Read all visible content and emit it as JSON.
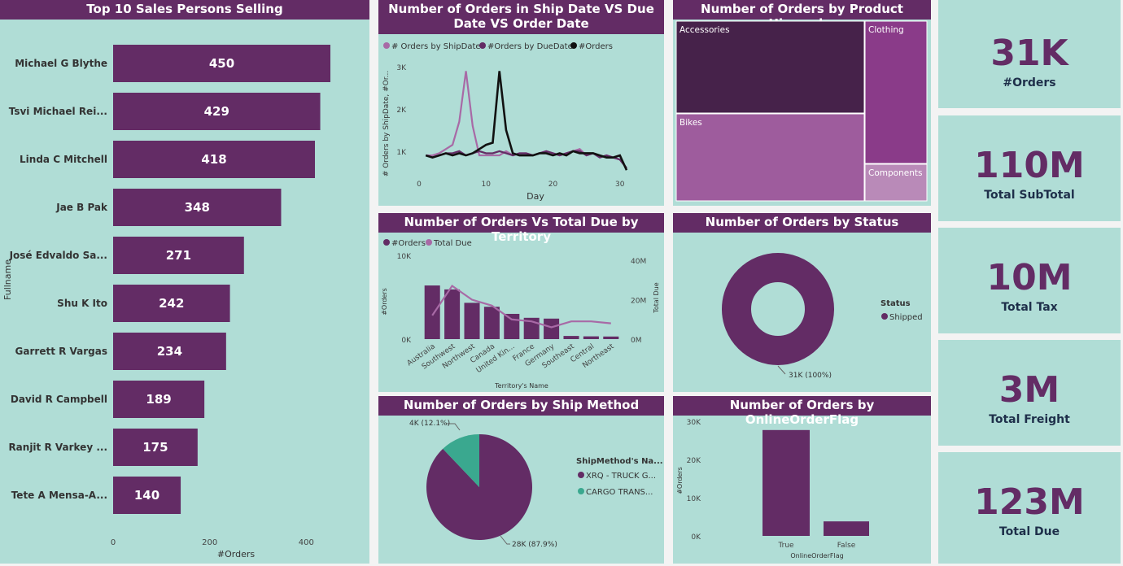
{
  "colors": {
    "accent": "#632c65",
    "light": "#a86aa6",
    "bg": "#b0ddd6",
    "black": "#111111",
    "teal": "#3aa88f"
  },
  "top_sales": {
    "title": "Top 10 Sales Persons Selling",
    "ylabel": "Fullname",
    "xlabel": "#Orders",
    "chart_data": {
      "type": "bar",
      "orientation": "horizontal",
      "categories": [
        "Michael G Blythe",
        "Tsvi Michael Rei...",
        "Linda C Mitchell",
        "Jae B Pak",
        "José Edvaldo Sa...",
        "Shu K Ito",
        "Garrett R Vargas",
        "David R Campbell",
        "Ranjit R Varkey ...",
        "Tete A Mensa-A..."
      ],
      "values": [
        450,
        429,
        418,
        348,
        271,
        242,
        234,
        189,
        175,
        140
      ],
      "xticks": [
        "0",
        "200",
        "400"
      ],
      "xlim": [
        0,
        460
      ]
    }
  },
  "ship_due": {
    "title": "Number of Orders in Ship Date VS Due Date VS Order Date",
    "legend": [
      "# Orders by ShipDate",
      "#Orders by DueDate",
      "#Orders"
    ],
    "ylabel": "# Orders by ShipDate, #Or...",
    "xlabel": "Day",
    "yticks": [
      "1K",
      "2K",
      "3K"
    ],
    "xticks": [
      "0",
      "10",
      "20",
      "30"
    ],
    "chart_data": {
      "type": "line",
      "x": [
        1,
        2,
        3,
        4,
        5,
        6,
        7,
        8,
        9,
        10,
        11,
        12,
        13,
        14,
        15,
        16,
        17,
        18,
        19,
        20,
        21,
        22,
        23,
        24,
        25,
        26,
        27,
        28,
        29,
        30,
        31
      ],
      "series": [
        {
          "name": "# Orders by ShipDate",
          "values": [
            900,
            900,
            950,
            1050,
            1150,
            1700,
            2900,
            1600,
            900,
            900,
            900,
            900,
            1000,
            900,
            950,
            950,
            900,
            950,
            1000,
            950,
            900,
            950,
            1000,
            1050,
            900,
            950,
            850,
            900,
            850,
            800,
            600
          ]
        },
        {
          "name": "#Orders by DueDate",
          "values": [
            900,
            850,
            900,
            950,
            950,
            1000,
            900,
            950,
            1000,
            950,
            950,
            1000,
            950,
            900,
            950,
            950,
            900,
            950,
            1000,
            950,
            900,
            950,
            1000,
            1000,
            900,
            950,
            850,
            900,
            850,
            800,
            600
          ]
        },
        {
          "name": "#Orders",
          "values": [
            900,
            850,
            900,
            950,
            900,
            950,
            900,
            950,
            1050,
            1150,
            1200,
            2900,
            1500,
            950,
            900,
            900,
            900,
            950,
            950,
            900,
            950,
            900,
            1000,
            950,
            950,
            950,
            900,
            850,
            850,
            900,
            550
          ]
        }
      ],
      "ylim": [
        400,
        3100
      ],
      "xlim": [
        0,
        31
      ]
    }
  },
  "product": {
    "title": "Number of Orders by Product Hierarchy",
    "chart_data": {
      "type": "treemap",
      "categories": [
        "Accessories",
        "Bikes",
        "Clothing",
        "Components"
      ]
    }
  },
  "territory": {
    "title": "Number of Orders Vs Total Due by Territory",
    "legend": [
      "#Orders",
      "Total Due"
    ],
    "ylabel": "#Orders",
    "y2label": "Total Due",
    "xlabel": "Territory's Name",
    "yticks": [
      "0K",
      "10K"
    ],
    "y2ticks": [
      "0M",
      "20M",
      "40M"
    ],
    "chart_data": {
      "type": "bar",
      "categories": [
        "Australia",
        "Southwest",
        "Northwest",
        "Canada",
        "United Kin...",
        "France",
        "Germany",
        "Southeast",
        "Central",
        "Northeast"
      ],
      "series": [
        {
          "name": "#Orders",
          "values": [
            6800,
            6300,
            4600,
            4100,
            3200,
            2700,
            2600,
            400,
            350,
            330
          ]
        },
        {
          "name": "Total Due",
          "values": [
            12000,
            27000,
            20000,
            17000,
            10000,
            9000,
            6000,
            9000,
            9000,
            8000
          ]
        }
      ],
      "ylim": [
        0,
        10000
      ],
      "y2lim": [
        0,
        40000
      ]
    }
  },
  "status": {
    "title": "Number of Orders by Status",
    "legend_title": "Status",
    "legend": [
      "Shipped"
    ],
    "label": "31K (100%)",
    "chart_data": {
      "type": "pie",
      "categories": [
        "Shipped"
      ],
      "values": [
        31000
      ]
    }
  },
  "ship_method": {
    "title": "Number of Orders by Ship Method",
    "legend_title": "ShipMethod's Na...",
    "legend": [
      "XRQ - TRUCK G...",
      "CARGO TRANS..."
    ],
    "label_big": "28K (87.9%)",
    "label_small": "4K (12.1%)",
    "chart_data": {
      "type": "pie",
      "categories": [
        "XRQ - TRUCK G...",
        "CARGO TRANS..."
      ],
      "values": [
        87.9,
        12.1
      ]
    }
  },
  "online": {
    "title": "Number of Orders by OnlineOrderFlag",
    "ylabel": "#Orders",
    "xlabel": "OnlineOrderFlag",
    "yticks": [
      "0K",
      "10K",
      "20K",
      "30K"
    ],
    "chart_data": {
      "type": "bar",
      "categories": [
        "True",
        "False"
      ],
      "values": [
        27700,
        3800
      ],
      "ylim": [
        0,
        30000
      ]
    }
  },
  "kpis": [
    {
      "value": "31K",
      "label": "#Orders"
    },
    {
      "value": "110M",
      "label": "Total SubTotal"
    },
    {
      "value": "10M",
      "label": "Total Tax"
    },
    {
      "value": "3M",
      "label": "Total Freight"
    },
    {
      "value": "123M",
      "label": "Total Due"
    }
  ]
}
